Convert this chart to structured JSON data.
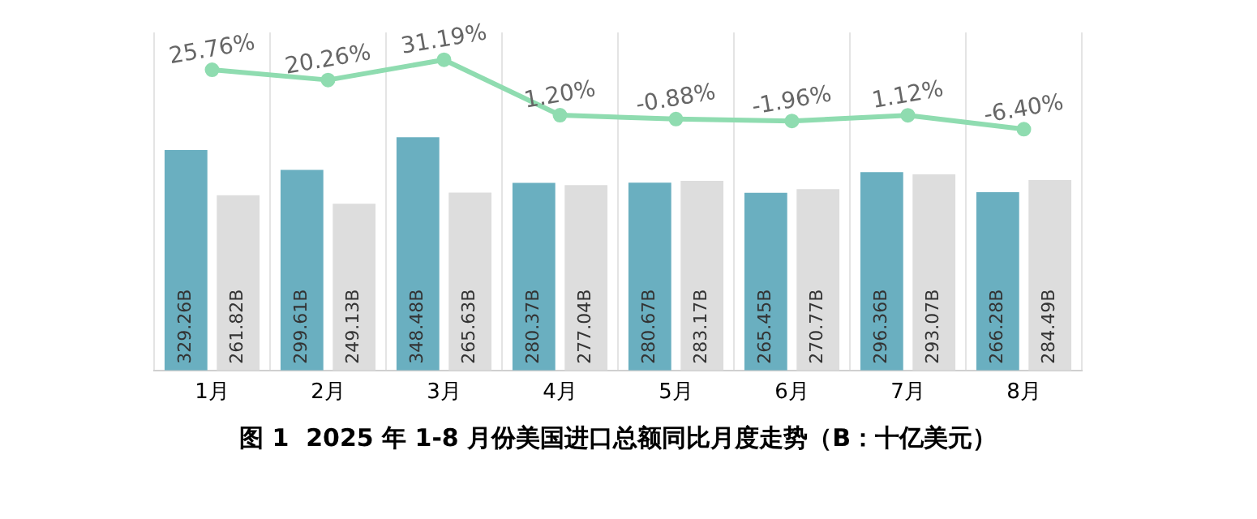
{
  "chart_data": {
    "type": "bar",
    "title": "图 1  2025 年 1-8 月份美国进口总额同比月度走势（B：十亿美元）",
    "categories": [
      "1月",
      "2月",
      "3月",
      "4月",
      "5月",
      "6月",
      "7月",
      "8月"
    ],
    "series": [
      {
        "color": "#6aafc0",
        "values": [
          329.26,
          299.61,
          348.48,
          280.37,
          280.67,
          265.45,
          296.36,
          266.28
        ],
        "value_labels": [
          "329.26B",
          "299.61B",
          "348.48B",
          "280.37B",
          "280.67B",
          "265.45B",
          "296.36B",
          "266.28B"
        ]
      },
      {
        "color": "#dddddd",
        "values": [
          261.82,
          249.13,
          265.63,
          277.04,
          283.17,
          270.77,
          293.07,
          284.49
        ],
        "value_labels": [
          "261.82B",
          "249.13B",
          "265.63B",
          "277.04B",
          "283.17B",
          "270.77B",
          "293.07B",
          "284.49B"
        ]
      },
      {
        "type": "line",
        "axis": "y2",
        "color": "#8fdcb0",
        "values": [
          25.76,
          20.26,
          31.19,
          1.2,
          -0.88,
          -1.96,
          1.12,
          -6.4
        ],
        "value_labels": [
          "25.76%",
          "20.26%",
          "31.19%",
          "1.20%",
          "-0.88%",
          "-1.96%",
          "1.12%",
          "-6.40%"
        ]
      }
    ],
    "ylim": [
      0,
      505
    ],
    "y2lim": [
      -137,
      46
    ],
    "tick_labels": "x",
    "grid": "x",
    "legend": false,
    "marker": "circle",
    "line_style": "solid"
  }
}
